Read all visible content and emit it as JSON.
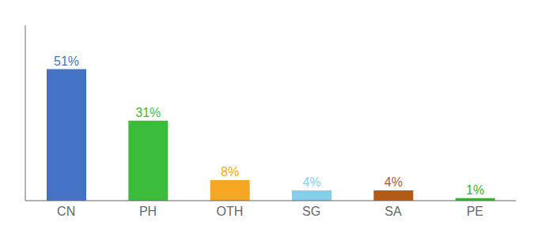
{
  "chart_data": {
    "type": "bar",
    "categories": [
      "CN",
      "PH",
      "OTH",
      "SG",
      "SA",
      "PE"
    ],
    "values": [
      51,
      31,
      8,
      4,
      4,
      1
    ],
    "value_labels": [
      "51%",
      "31%",
      "8%",
      "4%",
      "4%",
      "1%"
    ],
    "colors": [
      "#4472c4",
      "#3dbb3d",
      "#f5a623",
      "#87ceeb",
      "#b05a1a",
      "#2db82d"
    ],
    "ylim": [
      0,
      68
    ],
    "data_labels": true,
    "tick_labels": "x"
  }
}
